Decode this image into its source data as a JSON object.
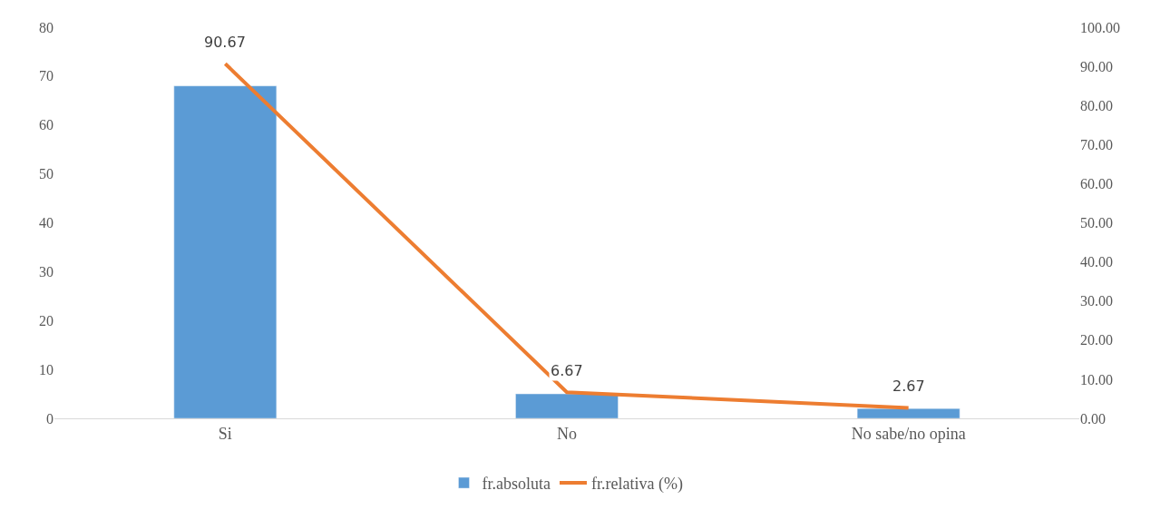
{
  "chart_data": {
    "type": "bar",
    "categories": [
      "Si",
      "No",
      "No sabe/no opina"
    ],
    "series": [
      {
        "name": "fr.absoluta",
        "color": "#5b9bd5",
        "values": [
          68,
          5,
          2
        ]
      },
      {
        "name": "fr.relativa (%)",
        "type": "line",
        "axis": "y2",
        "color": "#ed7d31",
        "values": [
          90.67,
          6.67,
          2.67
        ],
        "value_labels": [
          "90.67",
          "6.67",
          "2.67"
        ]
      }
    ],
    "ylim": [
      0,
      80
    ],
    "yticks": [
      0,
      10,
      20,
      30,
      40,
      50,
      60,
      70,
      80
    ],
    "y2lim": [
      0,
      100
    ],
    "y2ticks": [
      {
        "value": 0,
        "label": "0.00"
      },
      {
        "value": 10,
        "label": "10.00"
      },
      {
        "value": 20,
        "label": "20.00"
      },
      {
        "value": 30,
        "label": "30.00"
      },
      {
        "value": 40,
        "label": "40.00"
      },
      {
        "value": 50,
        "label": "50.00"
      },
      {
        "value": 60,
        "label": "60.00"
      },
      {
        "value": 70,
        "label": "70.00"
      },
      {
        "value": 80,
        "label": "80.00"
      },
      {
        "value": 90,
        "label": "90.00"
      },
      {
        "value": 100,
        "label": "100.00"
      }
    ],
    "grid": false,
    "legend": "bottom",
    "marker": "none",
    "line_style": "solid"
  }
}
